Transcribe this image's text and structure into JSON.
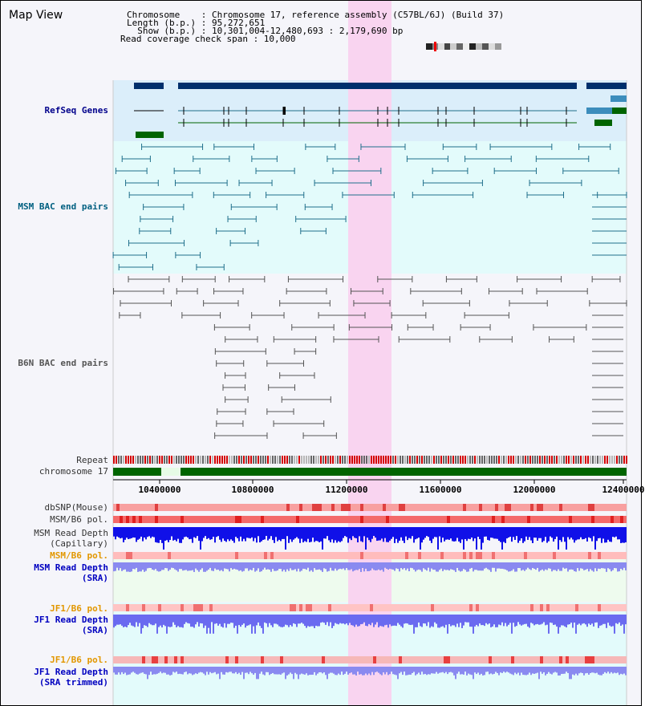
{
  "header": {
    "title": "Map View",
    "chromosome_line": "Chromosome    : Chromosome 17, reference assembly (C57BL/6J) (Build 37)",
    "length_line": "Length (b.p.) : 95,272,651",
    "show_line": "  Show (b.p.) : 10,301,004-12,480,693 : 2,179,690 bp",
    "span_line": "Read coverage check span : 10,000"
  },
  "tracks": {
    "refseq": "RefSeq Genes",
    "msm_bac": "MSM BAC end pairs",
    "b6n_bac": "B6N BAC end pairs",
    "repeat": "Repeat",
    "chromosome": "chromosome 17",
    "dbsnp": "dbSNP(Mouse)",
    "msm_pol1": "MSM/B6 pol.",
    "msm_depth_cap_1": "MSM Read Depth",
    "msm_depth_cap_2": "(Capillary)",
    "msm_pol2": "MSM/B6 pol.",
    "msm_depth_sra_1": "MSM Read Depth",
    "msm_depth_sra_2": "(SRA)",
    "jf1_pol1": "JF1/B6 pol.",
    "jf1_depth_1": "JF1 Read Depth",
    "jf1_depth_2": "(SRA)",
    "jf1_pol2": "JF1/B6 pol.",
    "jf1_trim_1": "JF1 Read Depth",
    "jf1_trim_2": "(SRA trimmed)"
  },
  "axis": {
    "ticks": [
      "10400000",
      "10800000",
      "11200000",
      "11600000",
      "12000000",
      "12400000"
    ]
  },
  "colors": {
    "highlight": "#f9d4f0",
    "refseq_bg": "#dbeefa",
    "gene_navy": "#002f6c",
    "gene_green": "#006400",
    "bac_teal": "#1f6f8b",
    "chrom_green": "#006400"
  }
}
